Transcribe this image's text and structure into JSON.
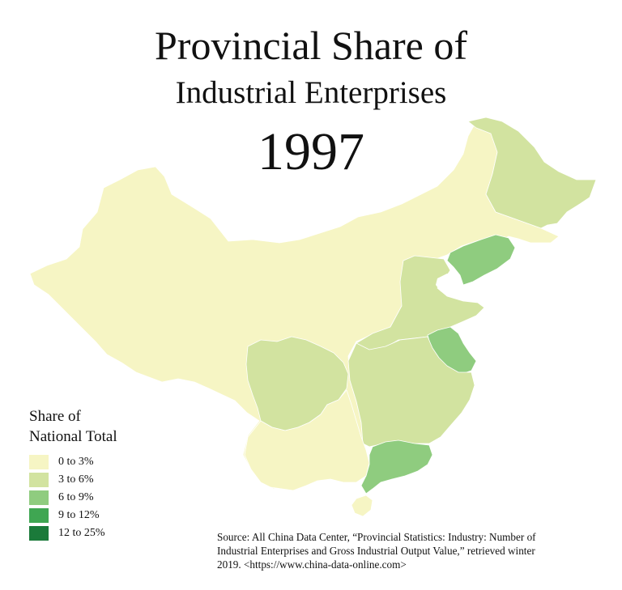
{
  "title": {
    "line1": "Provincial Share of",
    "line2": "Industrial Enterprises",
    "year": "1997"
  },
  "legend": {
    "title_line1": "Share of",
    "title_line2": "National Total",
    "classes": [
      {
        "label": "0 to 3%",
        "color": "#f6f5c4",
        "min": 0,
        "max": 3
      },
      {
        "label": "3 to 6%",
        "color": "#d2e3a0",
        "min": 3,
        "max": 6
      },
      {
        "label": "6 to 9%",
        "color": "#8fcc7f",
        "min": 6,
        "max": 9
      },
      {
        "label": "9 to 12%",
        "color": "#3fa652",
        "min": 9,
        "max": 12
      },
      {
        "label": "12 to 25%",
        "color": "#1b7a3a",
        "min": 12,
        "max": 25
      }
    ]
  },
  "source": {
    "line1": "Source: All China Data Center, “Provincial Statistics: Industry: Number of",
    "line2": "Industrial Enterprises and Gross Industrial Output Value,” retrieved winter",
    "line3": "2019. <https://www.china-data-online.com>"
  },
  "map": {
    "background": "#ffffff",
    "region_classes": {
      "west-and-north": 0,
      "heilongjiang": 1,
      "liaoning": 2,
      "hebei-shanxi-shandong": 1,
      "jiangsu": 2,
      "sichuan": 1,
      "central-east": 1,
      "guangdong": 2,
      "hainan": 0,
      "southwest": 0
    }
  }
}
